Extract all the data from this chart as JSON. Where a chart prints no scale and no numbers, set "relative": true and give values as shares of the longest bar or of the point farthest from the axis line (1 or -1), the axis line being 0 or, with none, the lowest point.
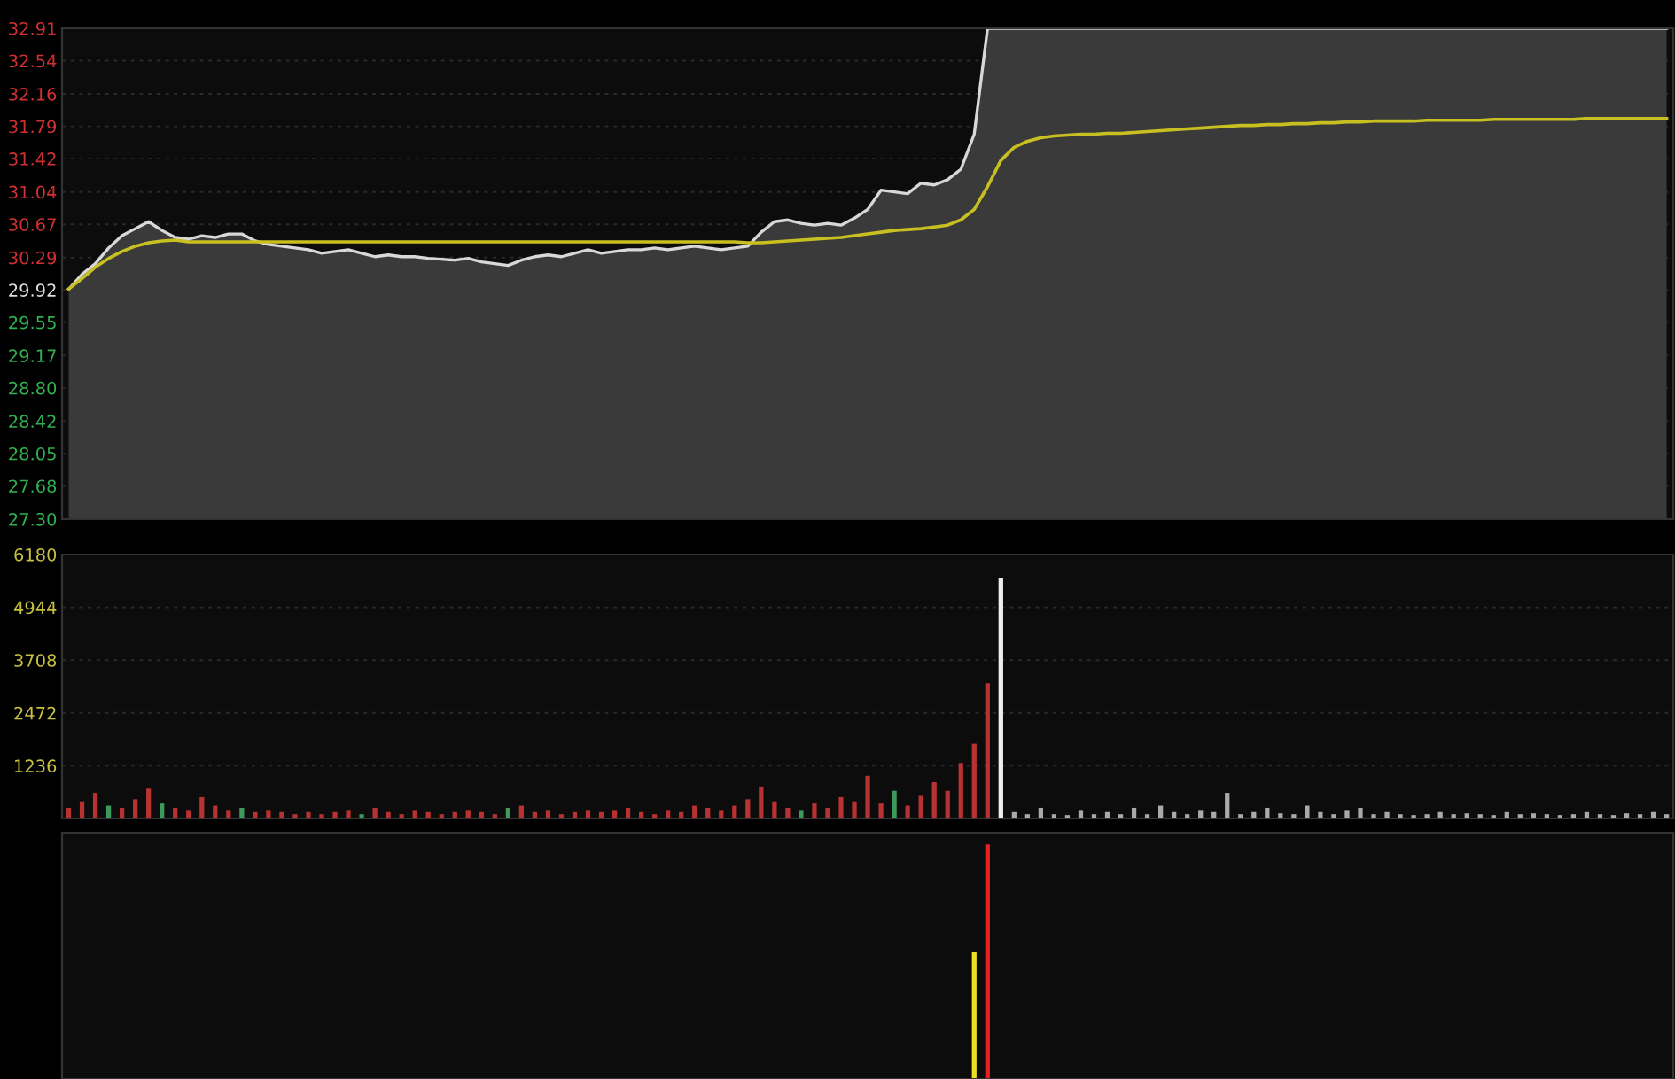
{
  "chart_data": [
    {
      "type": "area",
      "categories": [
        null,
        null,
        null,
        null,
        null,
        null,
        null,
        null,
        null,
        null,
        null,
        null,
        null,
        null,
        null,
        null,
        null,
        null,
        null,
        null,
        null,
        null,
        null,
        null,
        null,
        null,
        null,
        null,
        null,
        null,
        null,
        null,
        null,
        null,
        null,
        null,
        null,
        null,
        null,
        null,
        null,
        null,
        null,
        null,
        null,
        null,
        null,
        null,
        null,
        null,
        null,
        null,
        null,
        null,
        null,
        null,
        null,
        null,
        null,
        null,
        null,
        null,
        null,
        null,
        null,
        null,
        null,
        null,
        null,
        null,
        null,
        null,
        null,
        null,
        null,
        null,
        null,
        null,
        null,
        null,
        null,
        null,
        null,
        null,
        null,
        null,
        null,
        null,
        null,
        null,
        null,
        null,
        null,
        null,
        null,
        null,
        null,
        null,
        null,
        null,
        null,
        null,
        null,
        null,
        null,
        null,
        null,
        null,
        null,
        null,
        null,
        null,
        null,
        null,
        null,
        null,
        null,
        null,
        null,
        null,
        null
      ],
      "series": [
        {
          "type": "area",
          "color": "#d8d8d8",
          "values": [
            29.93,
            30.1,
            30.22,
            30.4,
            30.54,
            30.62,
            30.7,
            30.6,
            30.52,
            30.5,
            30.54,
            30.52,
            30.56,
            30.56,
            30.48,
            30.44,
            30.42,
            30.4,
            30.38,
            30.34,
            30.36,
            30.38,
            30.34,
            30.3,
            30.32,
            30.3,
            30.3,
            30.28,
            30.27,
            30.26,
            30.28,
            30.24,
            30.22,
            30.2,
            30.26,
            30.3,
            30.32,
            30.3,
            30.34,
            30.38,
            30.34,
            30.36,
            30.38,
            30.38,
            30.4,
            30.38,
            30.4,
            30.42,
            30.4,
            30.38,
            30.4,
            30.42,
            30.58,
            30.7,
            30.72,
            30.68,
            30.66,
            30.68,
            30.66,
            30.74,
            30.84,
            31.06,
            31.04,
            31.02,
            31.14,
            31.12,
            31.18,
            31.3,
            31.7,
            32.91,
            32.91,
            32.91,
            32.91,
            32.91,
            32.91,
            32.91,
            32.91,
            32.91,
            32.91,
            32.91,
            32.91,
            32.91,
            32.91,
            32.91,
            32.91,
            32.91,
            32.91,
            32.91,
            32.91,
            32.91,
            32.91,
            32.91,
            32.91,
            32.91,
            32.91,
            32.91,
            32.91,
            32.91,
            32.91,
            32.91,
            32.91,
            32.91,
            32.91,
            32.91,
            32.91,
            32.91,
            32.91,
            32.91,
            32.91,
            32.91,
            32.91,
            32.91,
            32.91,
            32.91,
            32.91,
            32.91,
            32.91,
            32.91,
            32.91,
            32.91,
            32.91
          ]
        },
        {
          "type": "line",
          "color": "#c8c020",
          "values": [
            29.93,
            30.05,
            30.18,
            30.28,
            30.36,
            30.42,
            30.46,
            30.48,
            30.49,
            30.47,
            30.47,
            30.47,
            30.47,
            30.47,
            30.47,
            30.47,
            30.47,
            30.47,
            30.47,
            30.47,
            30.47,
            30.47,
            30.47,
            30.47,
            30.47,
            30.47,
            30.47,
            30.47,
            30.47,
            30.47,
            30.47,
            30.47,
            30.47,
            30.47,
            30.47,
            30.47,
            30.47,
            30.47,
            30.47,
            30.47,
            30.47,
            30.47,
            30.47,
            30.47,
            30.47,
            30.47,
            30.47,
            30.47,
            30.47,
            30.47,
            30.47,
            30.46,
            30.46,
            30.47,
            30.48,
            30.49,
            30.5,
            30.51,
            30.52,
            30.54,
            30.56,
            30.58,
            30.6,
            30.61,
            30.62,
            30.64,
            30.66,
            30.72,
            30.84,
            31.1,
            31.4,
            31.55,
            31.62,
            31.66,
            31.68,
            31.69,
            31.7,
            31.7,
            31.71,
            31.71,
            31.72,
            31.73,
            31.74,
            31.75,
            31.76,
            31.77,
            31.78,
            31.79,
            31.8,
            31.8,
            31.81,
            31.81,
            31.82,
            31.82,
            31.83,
            31.83,
            31.84,
            31.84,
            31.85,
            31.85,
            31.85,
            31.85,
            31.86,
            31.86,
            31.86,
            31.86,
            31.86,
            31.87,
            31.87,
            31.87,
            31.87,
            31.87,
            31.87,
            31.87,
            31.88,
            31.88,
            31.88,
            31.88,
            31.88,
            31.88,
            31.88
          ]
        }
      ],
      "ylim": [
        27.3,
        32.91
      ],
      "yticks": [
        32.91,
        32.54,
        32.16,
        31.79,
        31.42,
        31.04,
        30.67,
        30.29,
        29.92,
        29.55,
        29.17,
        {
          "value": 28.8,
          "label": "28.80"
        },
        28.42,
        28.05,
        27.68,
        {
          "value": 27.3,
          "label": "27.30"
        }
      ],
      "grid": "y",
      "tick_labels": "y"
    },
    {
      "type": "bar",
      "categories": [
        null,
        null,
        null,
        null,
        null,
        null,
        null,
        null,
        null,
        null,
        null,
        null,
        null,
        null,
        null,
        null,
        null,
        null,
        null,
        null,
        null,
        null,
        null,
        null,
        null,
        null,
        null,
        null,
        null,
        null,
        null,
        null,
        null,
        null,
        null,
        null,
        null,
        null,
        null,
        null,
        null,
        null,
        null,
        null,
        null,
        null,
        null,
        null,
        null,
        null,
        null,
        null,
        null,
        null,
        null,
        null,
        null,
        null,
        null,
        null,
        null,
        null,
        null,
        null,
        null,
        null,
        null,
        null,
        null,
        null,
        null,
        null,
        null,
        null,
        null,
        null,
        null,
        null,
        null,
        null,
        null,
        null,
        null,
        null,
        null,
        null,
        null,
        null,
        null,
        null,
        null,
        null,
        null,
        null,
        null,
        null,
        null,
        null,
        null,
        null,
        null,
        null,
        null,
        null,
        null,
        null,
        null,
        null,
        null,
        null,
        null,
        null,
        null,
        null,
        null,
        null,
        null,
        null,
        null,
        null,
        null
      ],
      "values": [
        250,
        400,
        600,
        300,
        250,
        450,
        700,
        350,
        250,
        200,
        500,
        300,
        200,
        250,
        150,
        200,
        150,
        100,
        150,
        100,
        150,
        200,
        100,
        250,
        150,
        100,
        200,
        150,
        100,
        150,
        200,
        150,
        100,
        250,
        300,
        150,
        200,
        100,
        150,
        200,
        150,
        200,
        250,
        150,
        100,
        200,
        150,
        300,
        250,
        200,
        300,
        450,
        750,
        400,
        250,
        200,
        350,
        250,
        500,
        400,
        1000,
        350,
        650,
        300,
        550,
        850,
        650,
        1300,
        1750,
        3170,
        5640,
        150,
        100,
        250,
        100,
        80,
        200,
        100,
        150,
        100,
        250,
        100,
        300,
        150,
        100,
        200,
        150,
        600,
        100,
        150,
        250,
        120,
        100,
        300,
        150,
        100,
        200,
        250,
        100,
        150,
        100,
        80,
        100,
        150,
        100,
        120,
        100,
        80,
        150,
        100,
        120,
        100,
        80,
        100,
        150,
        100,
        80,
        120,
        100,
        150,
        100
      ],
      "colors": [
        "#b83232",
        "#b83232",
        "#b83232",
        "#3c9a5c",
        "#b83232",
        "#b83232",
        "#b83232",
        "#3c9a5c",
        "#b83232",
        "#b83232",
        "#b83232",
        "#b83232",
        "#b83232",
        "#3c9a5c",
        "#b83232",
        "#b83232",
        "#b83232",
        "#b83232",
        "#b83232",
        "#b83232",
        "#b83232",
        "#b83232",
        "#3c9a5c",
        "#b83232",
        "#b83232",
        "#b83232",
        "#b83232",
        "#b83232",
        "#b83232",
        "#b83232",
        "#b83232",
        "#b83232",
        "#b83232",
        "#3c9a5c",
        "#b83232",
        "#b83232",
        "#b83232",
        "#b83232",
        "#b83232",
        "#b83232",
        "#b83232",
        "#b83232",
        "#b83232",
        "#b83232",
        "#b83232",
        "#b83232",
        "#b83232",
        "#b83232",
        "#b83232",
        "#b83232",
        "#b83232",
        "#b83232",
        "#b83232",
        "#b83232",
        "#b83232",
        "#3c9a5c",
        "#b83232",
        "#b83232",
        "#b83232",
        "#b83232",
        "#b83232",
        "#b83232",
        "#3c9a5c",
        "#b83232",
        "#b83232",
        "#b83232",
        "#b83232",
        "#b83232",
        "#b83232",
        "#b83232",
        "#eeeeee",
        "#aaaaaa",
        "#aaaaaa",
        "#aaaaaa",
        "#aaaaaa",
        "#aaaaaa",
        "#aaaaaa",
        "#aaaaaa",
        "#aaaaaa",
        "#aaaaaa",
        "#aaaaaa",
        "#aaaaaa",
        "#aaaaaa",
        "#aaaaaa",
        "#aaaaaa",
        "#aaaaaa",
        "#aaaaaa",
        "#aaaaaa",
        "#aaaaaa",
        "#aaaaaa",
        "#aaaaaa",
        "#aaaaaa",
        "#aaaaaa",
        "#aaaaaa",
        "#aaaaaa",
        "#aaaaaa",
        "#aaaaaa",
        "#aaaaaa",
        "#aaaaaa",
        "#aaaaaa",
        "#aaaaaa",
        "#aaaaaa",
        "#aaaaaa",
        "#aaaaaa",
        "#aaaaaa",
        "#aaaaaa",
        "#aaaaaa",
        "#aaaaaa",
        "#aaaaaa",
        "#aaaaaa",
        "#aaaaaa",
        "#aaaaaa",
        "#aaaaaa",
        "#aaaaaa",
        "#aaaaaa",
        "#aaaaaa",
        "#aaaaaa",
        "#aaaaaa",
        "#aaaaaa",
        "#aaaaaa",
        "#aaaaaa"
      ],
      "ylim": [
        0,
        6180
      ],
      "yticks": [
        1236,
        2472,
        3708,
        4944,
        6180
      ],
      "grid": "y",
      "tick_labels": "y"
    },
    {
      "type": "bar",
      "relative": true,
      "tick_labels": false,
      "categories": [
        null,
        null,
        null,
        null,
        null,
        null,
        null,
        null,
        null,
        null,
        null,
        null,
        null,
        null,
        null,
        null,
        null,
        null,
        null,
        null,
        null,
        null,
        null,
        null,
        null,
        null,
        null,
        null,
        null,
        null,
        null,
        null,
        null,
        null,
        null,
        null,
        null,
        null,
        null,
        null,
        null,
        null,
        null,
        null,
        null,
        null,
        null,
        null,
        null,
        null,
        null,
        null,
        null,
        null,
        null,
        null,
        null,
        null,
        null,
        null,
        null,
        null,
        null,
        null,
        null,
        null,
        null,
        null,
        null,
        null,
        null,
        null,
        null,
        null,
        null,
        null,
        null,
        null,
        null,
        null,
        null,
        null,
        null,
        null,
        null,
        null,
        null,
        null,
        null,
        null,
        null,
        null,
        null,
        null,
        null,
        null,
        null,
        null,
        null,
        null,
        null,
        null,
        null,
        null,
        null,
        null,
        null,
        null,
        null,
        null,
        null,
        null,
        null,
        null,
        null,
        null,
        null,
        null,
        null,
        null,
        null
      ],
      "values": [
        null,
        null,
        null,
        null,
        null,
        null,
        null,
        null,
        null,
        null,
        null,
        null,
        null,
        null,
        null,
        null,
        null,
        null,
        null,
        null,
        null,
        null,
        null,
        null,
        null,
        null,
        null,
        null,
        null,
        null,
        null,
        null,
        null,
        null,
        null,
        null,
        null,
        null,
        null,
        null,
        null,
        null,
        null,
        null,
        null,
        null,
        null,
        null,
        null,
        null,
        null,
        null,
        null,
        null,
        null,
        null,
        null,
        null,
        null,
        null,
        null,
        null,
        null,
        null,
        null,
        null,
        null,
        null,
        0.54,
        1,
        null,
        null,
        null,
        null,
        null,
        null,
        null,
        null,
        null,
        null,
        null,
        null,
        null,
        null,
        null,
        null,
        null,
        null,
        null,
        null,
        null,
        null,
        null,
        null,
        null,
        null,
        null,
        null,
        null,
        null,
        null,
        null,
        null,
        null,
        null,
        null,
        null,
        null,
        null,
        null,
        null,
        null,
        null,
        null,
        null,
        null,
        null,
        null,
        null,
        null,
        null
      ],
      "colors": [
        "#e8e020",
        "#e8e020",
        "#e8e020",
        "#e8e020",
        "#e8e020",
        "#e8e020",
        "#e8e020",
        "#e8e020",
        "#e8e020",
        "#e8e020",
        "#e8e020",
        "#e8e020",
        "#e8e020",
        "#e8e020",
        "#e8e020",
        "#e8e020",
        "#e8e020",
        "#e8e020",
        "#e8e020",
        "#e8e020",
        "#e8e020",
        "#e8e020",
        "#e8e020",
        "#e8e020",
        "#e8e020",
        "#e8e020",
        "#e8e020",
        "#e8e020",
        "#e8e020",
        "#e8e020",
        "#e8e020",
        "#e8e020",
        "#e8e020",
        "#e8e020",
        "#e8e020",
        "#e8e020",
        "#e8e020",
        "#e8e020",
        "#e8e020",
        "#e8e020",
        "#e8e020",
        "#e8e020",
        "#e8e020",
        "#e8e020",
        "#e8e020",
        "#e8e020",
        "#e8e020",
        "#e8e020",
        "#e8e020",
        "#e8e020",
        "#e8e020",
        "#e8e020",
        "#e8e020",
        "#e8e020",
        "#e8e020",
        "#e8e020",
        "#e8e020",
        "#e8e020",
        "#e8e020",
        "#e8e020",
        "#e8e020",
        "#e8e020",
        "#e8e020",
        "#e8e020",
        "#e8e020",
        "#e8e020",
        "#e8e020",
        "#e8e020",
        "#e8e020",
        "#e82020",
        "#e8e020",
        "#e8e020",
        "#e8e020",
        "#e8e020",
        "#e8e020",
        "#e8e020",
        "#e8e020",
        "#e8e020",
        "#e8e020",
        "#e8e020",
        "#e8e020",
        "#e8e020",
        "#e8e020",
        "#e8e020",
        "#e8e020",
        "#e8e020",
        "#e8e020",
        "#e8e020",
        "#e8e020",
        "#e8e020",
        "#e8e020",
        "#e8e020",
        "#e8e020",
        "#e8e020",
        "#e8e020",
        "#e8e020",
        "#e8e020",
        "#e8e020",
        "#e8e020",
        "#e8e020",
        "#e8e020",
        "#e8e020",
        "#e8e020",
        "#e8e020",
        "#e8e020",
        "#e8e020",
        "#e8e020",
        "#e8e020",
        "#e8e020",
        "#e8e020",
        "#e8e020",
        "#e8e020",
        "#e8e020",
        "#e8e020",
        "#e8e020",
        "#e8e020",
        "#e8e020",
        "#e8e020",
        "#e8e020",
        "#e8e020",
        "#e8e020"
      ]
    }
  ]
}
